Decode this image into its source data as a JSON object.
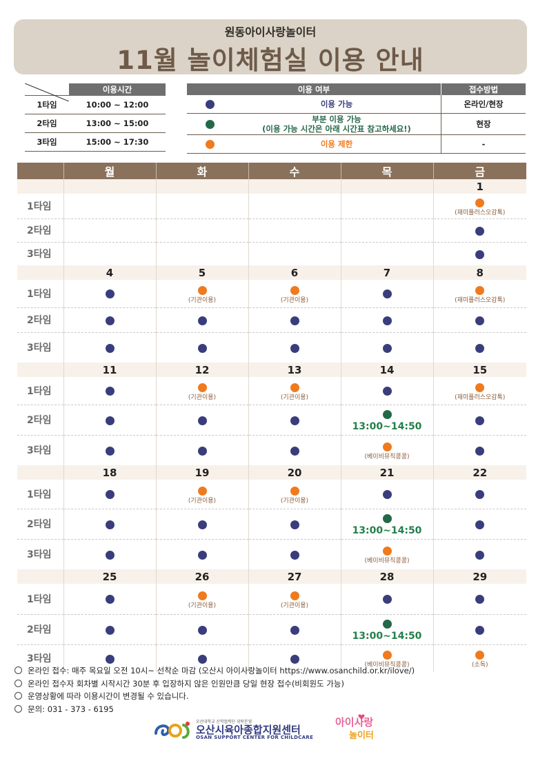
{
  "header": {
    "subtitle": "원동아이사랑놀이터",
    "title": "11월 놀이체험실 이용 안내"
  },
  "time_table": {
    "header": "이용시간",
    "rows": [
      {
        "label": "1타임",
        "time": "10:00 ~ 12:00"
      },
      {
        "label": "2타임",
        "time": "13:00 ~ 15:00"
      },
      {
        "label": "3타임",
        "time": "15:00 ~ 17:30"
      }
    ]
  },
  "status_table": {
    "col_status": "이용 여부",
    "col_method": "접수방법",
    "rows": [
      {
        "color": "blue",
        "label": "이용 가능",
        "label2": "",
        "method": "온라인/현장"
      },
      {
        "color": "green",
        "label": "부분 이용 가능",
        "label2": "(이용 가능 시간은 아래 시간표 참고하세요!)",
        "method": "현장"
      },
      {
        "color": "orange",
        "label": "이용 제한",
        "label2": "",
        "method": "-"
      }
    ]
  },
  "colors": {
    "blue": "#3a3d7c",
    "green": "#24684a",
    "orange": "#f07a1e"
  },
  "calendar": {
    "days": [
      "월",
      "화",
      "수",
      "목",
      "금"
    ],
    "slot_labels": [
      "1타임",
      "2타임",
      "3타임"
    ],
    "weeks": [
      {
        "dates": [
          "",
          "",
          "",
          "",
          "1"
        ],
        "slots": [
          [
            null,
            null,
            null,
            null,
            {
              "s": "orange",
              "note": "(재미플러스오감톡)"
            }
          ],
          [
            null,
            null,
            null,
            null,
            {
              "s": "blue"
            }
          ],
          [
            null,
            null,
            null,
            null,
            {
              "s": "blue"
            }
          ]
        ]
      },
      {
        "dates": [
          "4",
          "5",
          "6",
          "7",
          "8"
        ],
        "slots": [
          [
            {
              "s": "blue"
            },
            {
              "s": "orange",
              "note": "(기관이용)"
            },
            {
              "s": "orange",
              "note": "(기관이용)"
            },
            {
              "s": "blue"
            },
            {
              "s": "orange",
              "note": "(재미플러스오감톡)"
            }
          ],
          [
            {
              "s": "blue"
            },
            {
              "s": "blue"
            },
            {
              "s": "blue"
            },
            {
              "s": "blue"
            },
            {
              "s": "blue"
            }
          ],
          [
            {
              "s": "blue"
            },
            {
              "s": "blue"
            },
            {
              "s": "blue"
            },
            {
              "s": "blue"
            },
            {
              "s": "blue"
            }
          ]
        ]
      },
      {
        "dates": [
          "11",
          "12",
          "13",
          "14",
          "15"
        ],
        "slots": [
          [
            {
              "s": "blue"
            },
            {
              "s": "orange",
              "note": "(기관이용)"
            },
            {
              "s": "orange",
              "note": "(기관이용)"
            },
            {
              "s": "blue"
            },
            {
              "s": "orange",
              "note": "(재미플러스오감톡)"
            }
          ],
          [
            {
              "s": "blue"
            },
            {
              "s": "blue"
            },
            {
              "s": "blue"
            },
            {
              "s": "green",
              "time": "13:00~14:50"
            },
            {
              "s": "blue"
            }
          ],
          [
            {
              "s": "blue"
            },
            {
              "s": "blue"
            },
            {
              "s": "blue"
            },
            {
              "s": "orange",
              "note": "(베이비뮤직콩콩)"
            },
            {
              "s": "blue"
            }
          ]
        ]
      },
      {
        "dates": [
          "18",
          "19",
          "20",
          "21",
          "22"
        ],
        "slots": [
          [
            {
              "s": "blue"
            },
            {
              "s": "orange",
              "note": "(기관이용)"
            },
            {
              "s": "orange",
              "note": "(기관이용)"
            },
            {
              "s": "blue"
            },
            {
              "s": "blue"
            }
          ],
          [
            {
              "s": "blue"
            },
            {
              "s": "blue"
            },
            {
              "s": "blue"
            },
            {
              "s": "green",
              "time": "13:00~14:50"
            },
            {
              "s": "blue"
            }
          ],
          [
            {
              "s": "blue"
            },
            {
              "s": "blue"
            },
            {
              "s": "blue"
            },
            {
              "s": "orange",
              "note": "(베이비뮤직콩콩)"
            },
            {
              "s": "blue"
            }
          ]
        ]
      },
      {
        "dates": [
          "25",
          "26",
          "27",
          "28",
          "29"
        ],
        "slots": [
          [
            {
              "s": "blue"
            },
            {
              "s": "orange",
              "note": "(기관이용)"
            },
            {
              "s": "orange",
              "note": "(기관이용)"
            },
            {
              "s": "blue"
            },
            {
              "s": "blue"
            }
          ],
          [
            {
              "s": "blue"
            },
            {
              "s": "blue"
            },
            {
              "s": "blue"
            },
            {
              "s": "green",
              "time": "13:00~14:50"
            },
            {
              "s": "blue"
            }
          ],
          [
            {
              "s": "blue"
            },
            {
              "s": "blue"
            },
            {
              "s": "blue"
            },
            {
              "s": "orange",
              "note": "(베이비뮤직콩콩)"
            },
            {
              "s": "orange",
              "note": "(소독)"
            }
          ]
        ]
      }
    ]
  },
  "notes": [
    "온라인 접수: 매주 목요일 오전 10시~ 선착순 마감 (오산시 아이사랑놀이터 https://www.osanchild.or.kr/ilove/)",
    "온라인 접수자 회차별 시작시간 30분 후 입장하지 않은 인원만큼 당일 현장 접수(비회원도 가능)",
    "운영상황에 따라 이용시간이 변경될 수 있습니다.",
    "문의: 031 - 373 - 6195"
  ],
  "footer": {
    "org_small": "오산대학교 산학협력단 위탁운영",
    "org_name": "오산시육아종합지원센터",
    "org_en": "OSAN SUPPORT CENTER FOR CHILDCARE",
    "logo2_text": "아이사랑놀이터"
  }
}
